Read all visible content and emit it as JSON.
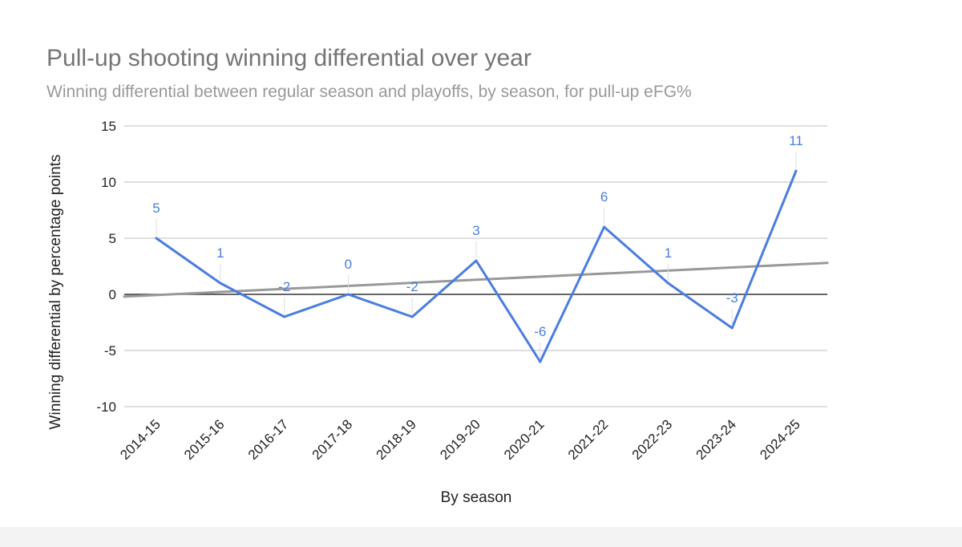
{
  "chart_data": {
    "type": "line",
    "title": "Pull-up shooting winning differential over year",
    "subtitle": "Winning differential between regular season and playoffs, by season, for pull-up eFG%",
    "xlabel": "By season",
    "ylabel": "Winning differential by percentage points",
    "categories": [
      "2014-15",
      "2015-16",
      "2016-17",
      "2017-18",
      "2018-19",
      "2019-20",
      "2020-21",
      "2021-22",
      "2022-23",
      "2023-24",
      "2024-25"
    ],
    "series": [
      {
        "name": "Winning differential",
        "values": [
          5,
          1,
          -2,
          0,
          -2,
          3,
          -6,
          6,
          1,
          -3,
          11
        ]
      }
    ],
    "data_labels": [
      "5",
      "1",
      "-2",
      "0",
      "-2",
      "3",
      "-6",
      "6",
      "1",
      "-3",
      "11"
    ],
    "trendline": {
      "type": "linear",
      "start": -0.2,
      "end": 2.8
    },
    "ylim": [
      -10,
      15
    ],
    "yticks": [
      15,
      10,
      5,
      0,
      -5,
      -10
    ],
    "ytick_labels": [
      "15",
      "10",
      "5",
      "0",
      "-5",
      "-10"
    ],
    "grid": true,
    "legend": "none",
    "colors": {
      "series": "#4a7de0",
      "trend": "#999999",
      "grid": "#cccccc",
      "zero": "#333333",
      "title": "#757575",
      "subtitle": "#999999",
      "axis_text": "#222222"
    }
  }
}
